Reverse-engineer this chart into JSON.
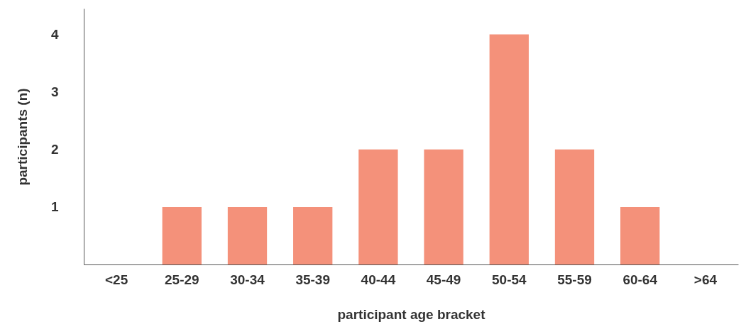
{
  "chart_data": {
    "type": "bar",
    "xlabel": "participant age bracket",
    "ylabel": "participants (n)",
    "categories": [
      "<25",
      "25-29",
      "30-34",
      "35-39",
      "40-44",
      "45-49",
      "50-54",
      "55-59",
      "60-64",
      ">64"
    ],
    "values": [
      0,
      1,
      1,
      1,
      2,
      2,
      4,
      2,
      1,
      0
    ],
    "color": "#f4917a",
    "ylim": [
      0,
      4.45
    ],
    "yticks": [
      1,
      2,
      3,
      4
    ],
    "grid": false
  }
}
